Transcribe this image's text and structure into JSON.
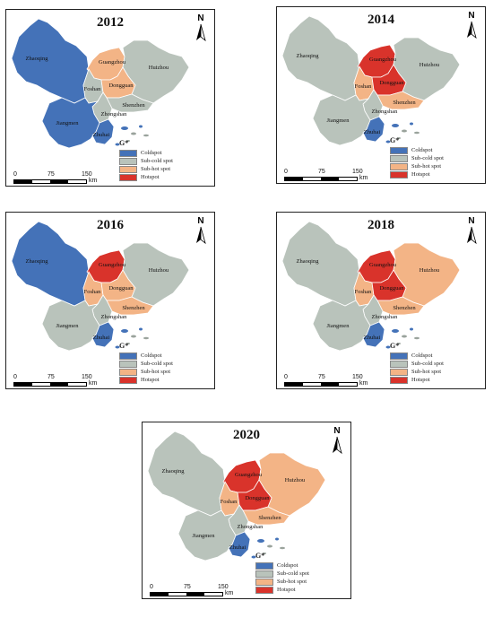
{
  "colors": {
    "coldspot": "#4472b8",
    "subcold": "#b9c3bb",
    "subhot": "#f3b486",
    "hotspot": "#d9332b",
    "coast": "#9aa39c"
  },
  "legend": {
    "title": "G*",
    "items": [
      {
        "label": "Coldspot",
        "cls": "coldspot"
      },
      {
        "label": "Sub-cold spot",
        "cls": "subcold"
      },
      {
        "label": "Sub-hot spot",
        "cls": "subhot"
      },
      {
        "label": "Hotspot",
        "cls": "hotspot"
      }
    ]
  },
  "north_label": "N",
  "scale": {
    "ticks": [
      "0",
      "75",
      "150"
    ],
    "unit": "km"
  },
  "city_names": {
    "zhaoqing": "Zhaoqing",
    "guangzhou": "Guangzhou",
    "huizhou": "Huizhou",
    "foshan": "Foshan",
    "dongguan": "Dongguan",
    "shenzhen": "Shenzhen",
    "zhongshan": "Zhongshan",
    "jiangmen": "Jiangmen",
    "zhuhai": "Zhuhai"
  },
  "maps": [
    {
      "year": "2012",
      "classes": {
        "zhaoqing": "coldspot",
        "guangzhou": "subhot",
        "huizhou": "subcold",
        "foshan": "subcold",
        "dongguan": "subhot",
        "shenzhen": "subcold",
        "zhongshan": "subcold",
        "jiangmen": "coldspot",
        "zhuhai": "coldspot"
      }
    },
    {
      "year": "2014",
      "classes": {
        "zhaoqing": "subcold",
        "guangzhou": "hotspot",
        "huizhou": "subcold",
        "foshan": "subhot",
        "dongguan": "hotspot",
        "shenzhen": "subhot",
        "zhongshan": "subcold",
        "jiangmen": "subcold",
        "zhuhai": "coldspot"
      }
    },
    {
      "year": "2016",
      "classes": {
        "zhaoqing": "coldspot",
        "guangzhou": "hotspot",
        "huizhou": "subcold",
        "foshan": "subhot",
        "dongguan": "subhot",
        "shenzhen": "subhot",
        "zhongshan": "subcold",
        "jiangmen": "subcold",
        "zhuhai": "coldspot"
      }
    },
    {
      "year": "2018",
      "classes": {
        "zhaoqing": "subcold",
        "guangzhou": "hotspot",
        "huizhou": "subhot",
        "foshan": "subhot",
        "dongguan": "hotspot",
        "shenzhen": "subhot",
        "zhongshan": "subcold",
        "jiangmen": "subcold",
        "zhuhai": "coldspot"
      }
    },
    {
      "year": "2020",
      "classes": {
        "zhaoqing": "subcold",
        "guangzhou": "hotspot",
        "huizhou": "subhot",
        "foshan": "subhot",
        "dongguan": "hotspot",
        "shenzhen": "subhot",
        "zhongshan": "subcold",
        "jiangmen": "subcold",
        "zhuhai": "coldspot"
      }
    }
  ]
}
